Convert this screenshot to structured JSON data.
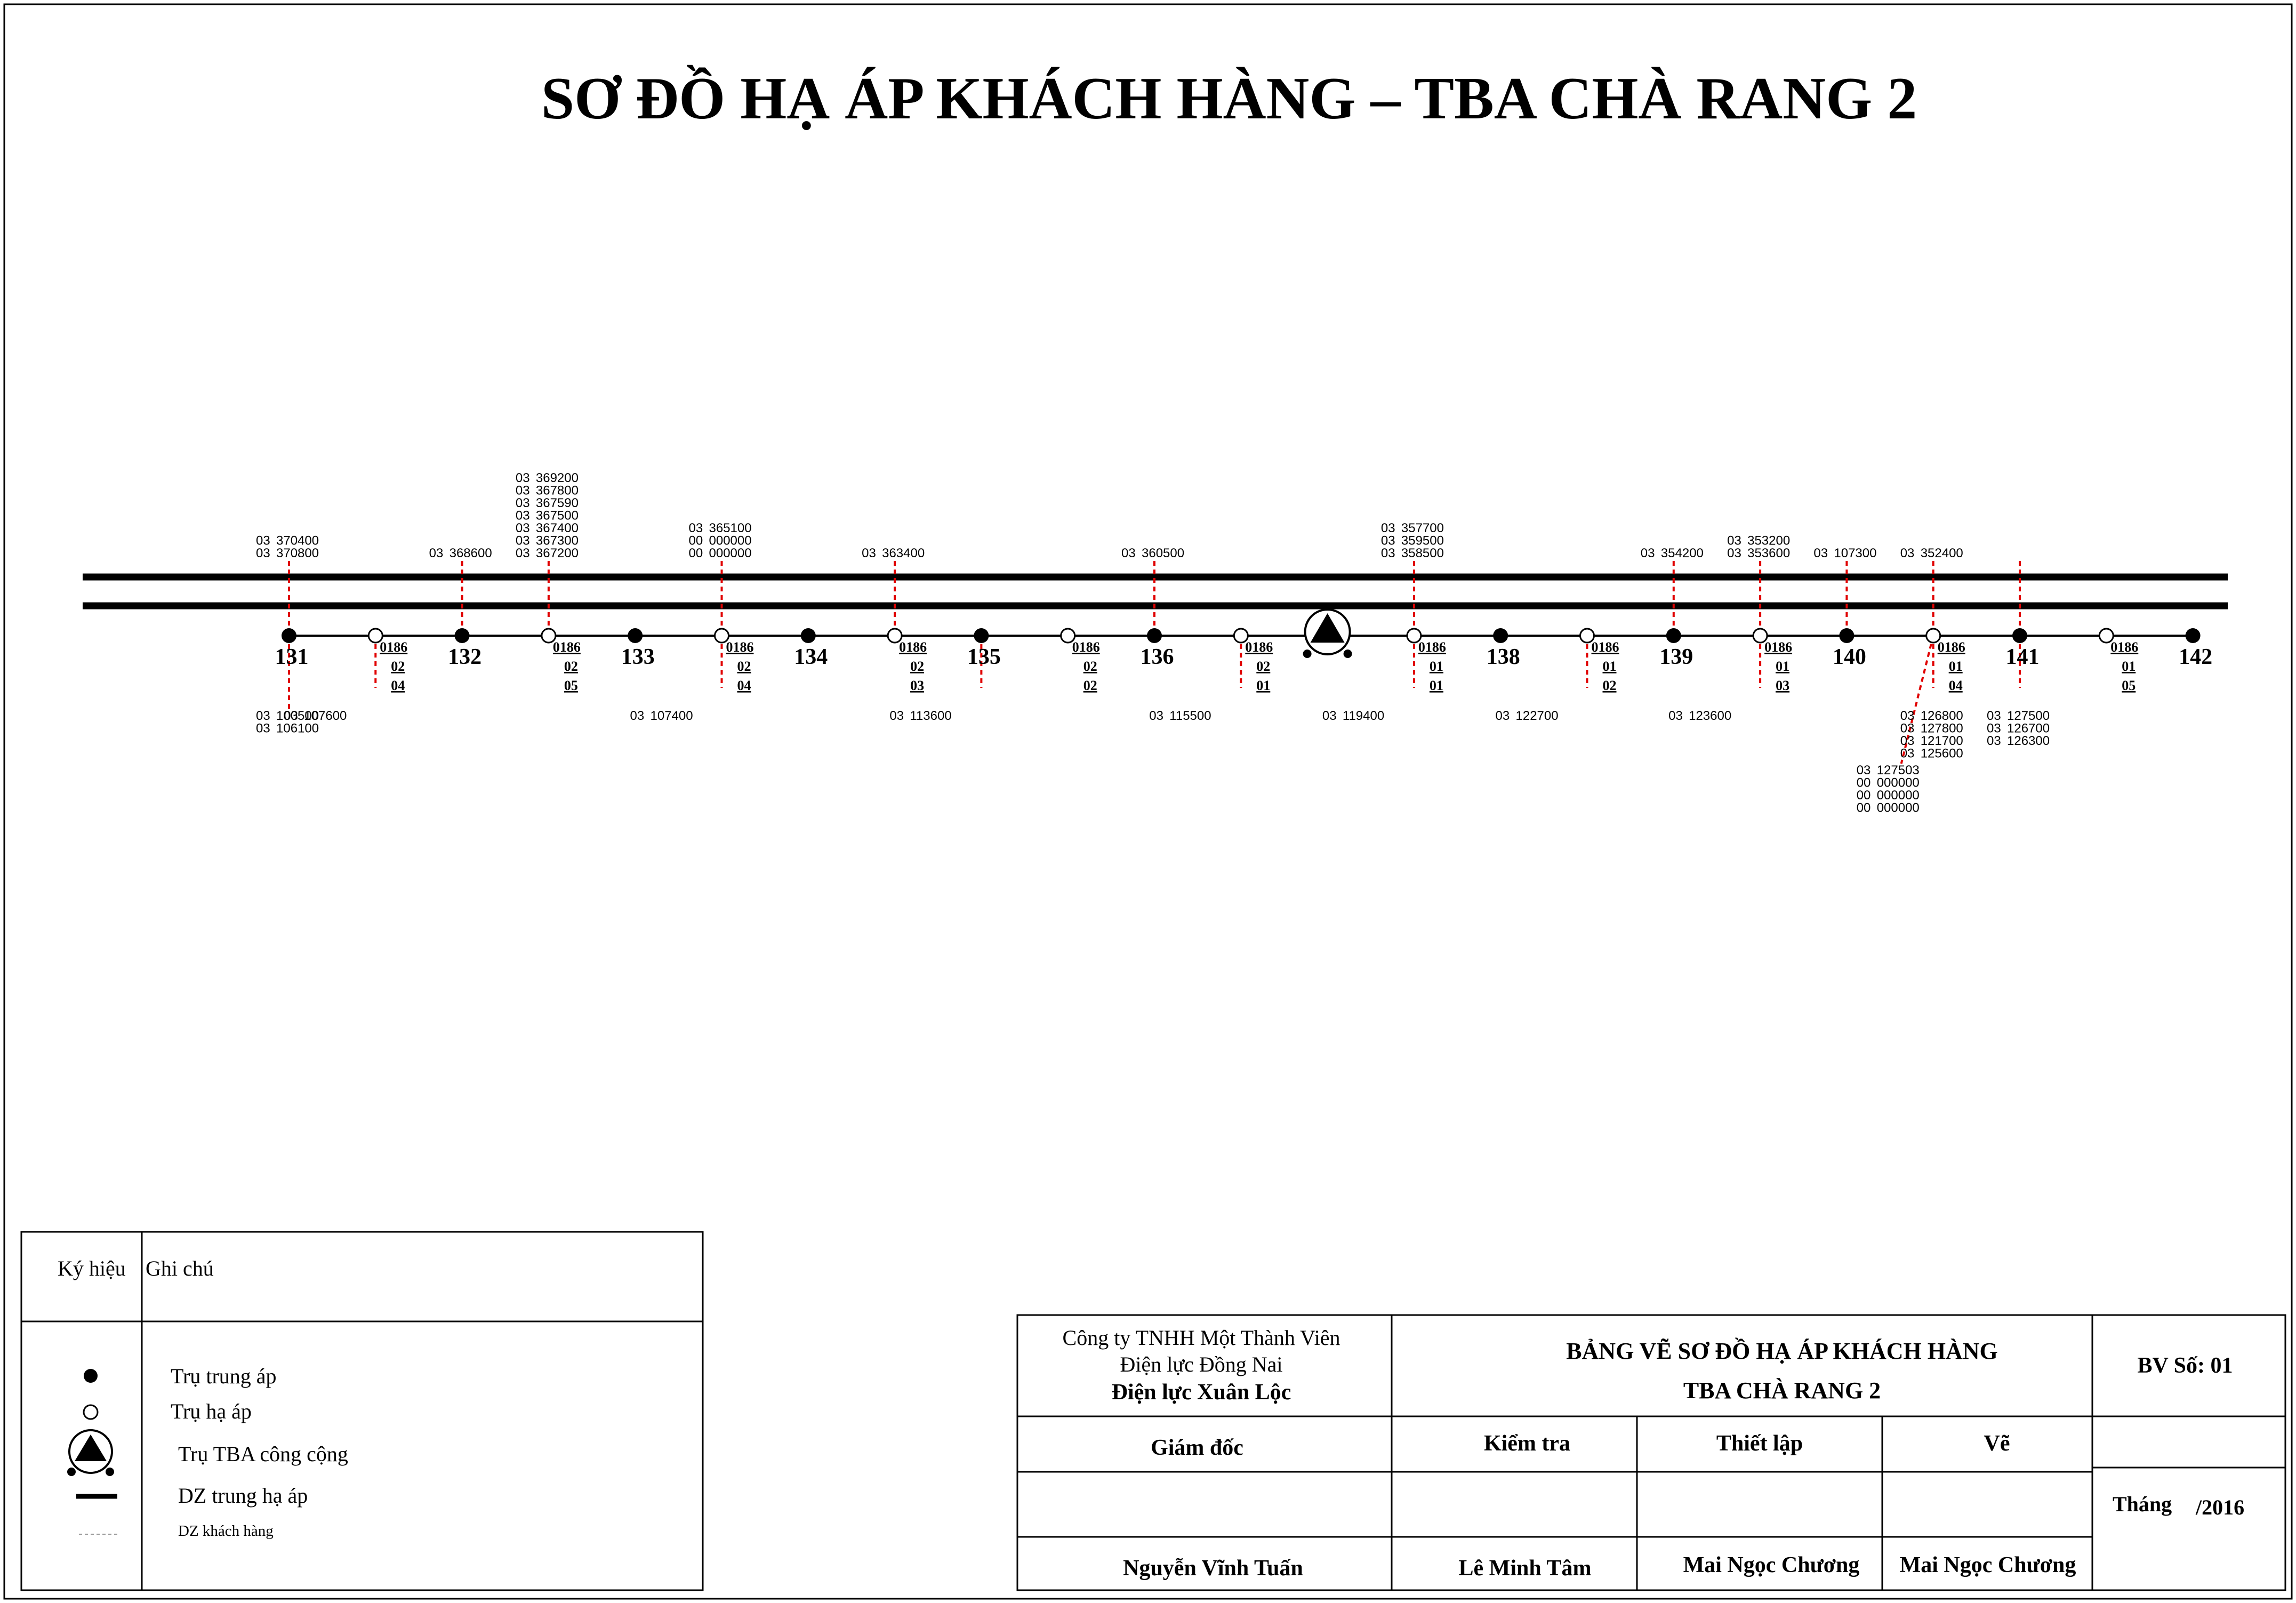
{
  "title": "SƠ ĐỒ HẠ ÁP KHÁCH HÀNG – TBA CHÀ RANG 2",
  "colors": {
    "line": "#000000",
    "branch": "#e00000",
    "background": "#ffffff"
  },
  "poles": [
    {
      "kind": "mv",
      "label": "131"
    },
    {
      "kind": "lv",
      "code": [
        "0186",
        "02",
        "04"
      ]
    },
    {
      "kind": "mv",
      "label": "132"
    },
    {
      "kind": "lv",
      "code": [
        "0186",
        "02",
        "05"
      ]
    },
    {
      "kind": "mv",
      "label": "133"
    },
    {
      "kind": "lv",
      "code": [
        "0186",
        "02",
        "04"
      ]
    },
    {
      "kind": "mv",
      "label": "134"
    },
    {
      "kind": "lv",
      "code": [
        "0186",
        "02",
        "03"
      ]
    },
    {
      "kind": "mv",
      "label": "135"
    },
    {
      "kind": "lv",
      "code": [
        "0186",
        "02",
        "02"
      ]
    },
    {
      "kind": "mv",
      "label": "136"
    },
    {
      "kind": "lv",
      "code": [
        "0186",
        "02",
        "01"
      ]
    },
    {
      "kind": "tba",
      "label": ""
    },
    {
      "kind": "lv",
      "code": [
        "0186",
        "01",
        "01"
      ]
    },
    {
      "kind": "mv",
      "label": "138"
    },
    {
      "kind": "lv",
      "code": [
        "0186",
        "01",
        "02"
      ]
    },
    {
      "kind": "mv",
      "label": "139"
    },
    {
      "kind": "lv",
      "code": [
        "0186",
        "01",
        "03"
      ]
    },
    {
      "kind": "mv",
      "label": "140"
    },
    {
      "kind": "lv",
      "code": [
        "0186",
        "01",
        "04"
      ]
    },
    {
      "kind": "mv",
      "label": "141"
    },
    {
      "kind": "lv",
      "code": [
        "0186",
        "01",
        "05"
      ]
    },
    {
      "kind": "mv",
      "label": "142"
    }
  ],
  "customers_above": [
    {
      "pole": 0,
      "rows": [
        [
          "03",
          "370400"
        ],
        [
          "03",
          "370800"
        ]
      ]
    },
    {
      "pole": 2,
      "rows": [
        [
          "03",
          "368600"
        ]
      ]
    },
    {
      "pole": 3,
      "rows": [
        [
          "03",
          "369200"
        ],
        [
          "03",
          "367800"
        ],
        [
          "03",
          "367590"
        ],
        [
          "03",
          "367500"
        ],
        [
          "03",
          "367400"
        ],
        [
          "03",
          "367300"
        ],
        [
          "03",
          "367200"
        ]
      ]
    },
    {
      "pole": 5,
      "rows": [
        [
          "03",
          "365100"
        ],
        [
          "00",
          "000000"
        ],
        [
          "00",
          "000000"
        ]
      ]
    },
    {
      "pole": 7,
      "rows": [
        [
          "03",
          "363400"
        ]
      ]
    },
    {
      "pole": 10,
      "rows": [
        [
          "03",
          "360500"
        ]
      ]
    },
    {
      "pole": 13,
      "rows": [
        [
          "03",
          "357700"
        ],
        [
          "03",
          "359500"
        ],
        [
          "03",
          "358500"
        ]
      ]
    },
    {
      "pole": 16,
      "rows": [
        [
          "03",
          "354200"
        ]
      ]
    },
    {
      "pole": 17,
      "rows": [
        [
          "03",
          "353200"
        ],
        [
          "03",
          "353600"
        ]
      ]
    },
    {
      "pole": 18,
      "rows": [
        [
          "03",
          "107300"
        ]
      ]
    },
    {
      "pole": 19,
      "rows": [
        [
          "03",
          "352400"
        ]
      ]
    },
    {
      "pole": 20,
      "rows": []
    }
  ],
  "customers_below": [
    {
      "pole": 0,
      "rows": [
        [
          "03",
          "100500"
        ],
        [
          "03",
          "106100"
        ]
      ]
    },
    {
      "pole": 1,
      "rows": [
        [
          "03",
          "107600"
        ]
      ]
    },
    {
      "pole": 5,
      "rows": [
        [
          "03",
          "107400"
        ]
      ]
    },
    {
      "pole": 8,
      "rows": [
        [
          "03",
          "113600"
        ]
      ]
    },
    {
      "pole": 11,
      "rows": [
        [
          "03",
          "115500"
        ]
      ]
    },
    {
      "pole": 13,
      "rows": [
        [
          "03",
          "119400"
        ]
      ]
    },
    {
      "pole": 15,
      "rows": [
        [
          "03",
          "122700"
        ]
      ]
    },
    {
      "pole": 17,
      "rows": [
        [
          "03",
          "123600"
        ]
      ]
    },
    {
      "pole": 19,
      "rows": [
        [
          "03",
          "126800"
        ],
        [
          "03",
          "127800"
        ],
        [
          "03",
          "121700"
        ],
        [
          "03",
          "125600"
        ]
      ]
    },
    {
      "pole": 20,
      "rows": [
        [
          "03",
          "127500"
        ],
        [
          "03",
          "126700"
        ],
        [
          "03",
          "126300"
        ]
      ]
    }
  ],
  "customers_below_extra": {
    "pole": 19,
    "rows": [
      [
        "03",
        "127503"
      ],
      [
        "00",
        "000000"
      ],
      [
        "00",
        "000000"
      ],
      [
        "00",
        "000000"
      ]
    ]
  },
  "legend": {
    "col1_header": "Ký hiệu",
    "col2_header": "Ghi chú",
    "items": [
      {
        "icon": "mv-pole-icon",
        "label": "Trụ trung áp"
      },
      {
        "icon": "lv-pole-icon",
        "label": "Trụ hạ áp"
      },
      {
        "icon": "tba-icon",
        "label": "Trụ TBA công cộng"
      },
      {
        "icon": "mv-lv-line-icon",
        "label": "DZ trung hạ áp"
      },
      {
        "icon": "customer-line-icon",
        "label": "DZ khách hàng"
      }
    ]
  },
  "title_block": {
    "company_line1": "Công ty TNHH Một Thành Viên",
    "company_line2": "Điện lực Đồng Nai",
    "company_line3": "Điện lực Xuân Lộc",
    "drawing_title1": "BẢNG VẼ SƠ ĐỒ HẠ ÁP KHÁCH HÀNG",
    "drawing_title2": "TBA CHÀ RANG 2",
    "sheet_no": "BV Số: 01",
    "role_director": "Giám đốc",
    "role_check": "Kiểm tra",
    "role_setup": "Thiết lập",
    "role_draw": "Vẽ",
    "name_director": "Nguyễn Vĩnh Tuấn",
    "name_check": "Lê Minh Tâm",
    "name_setup": "Mai Ngọc Chương",
    "name_draw": "Mai Ngọc Chương",
    "month_label": "Tháng",
    "year": "/2016"
  }
}
